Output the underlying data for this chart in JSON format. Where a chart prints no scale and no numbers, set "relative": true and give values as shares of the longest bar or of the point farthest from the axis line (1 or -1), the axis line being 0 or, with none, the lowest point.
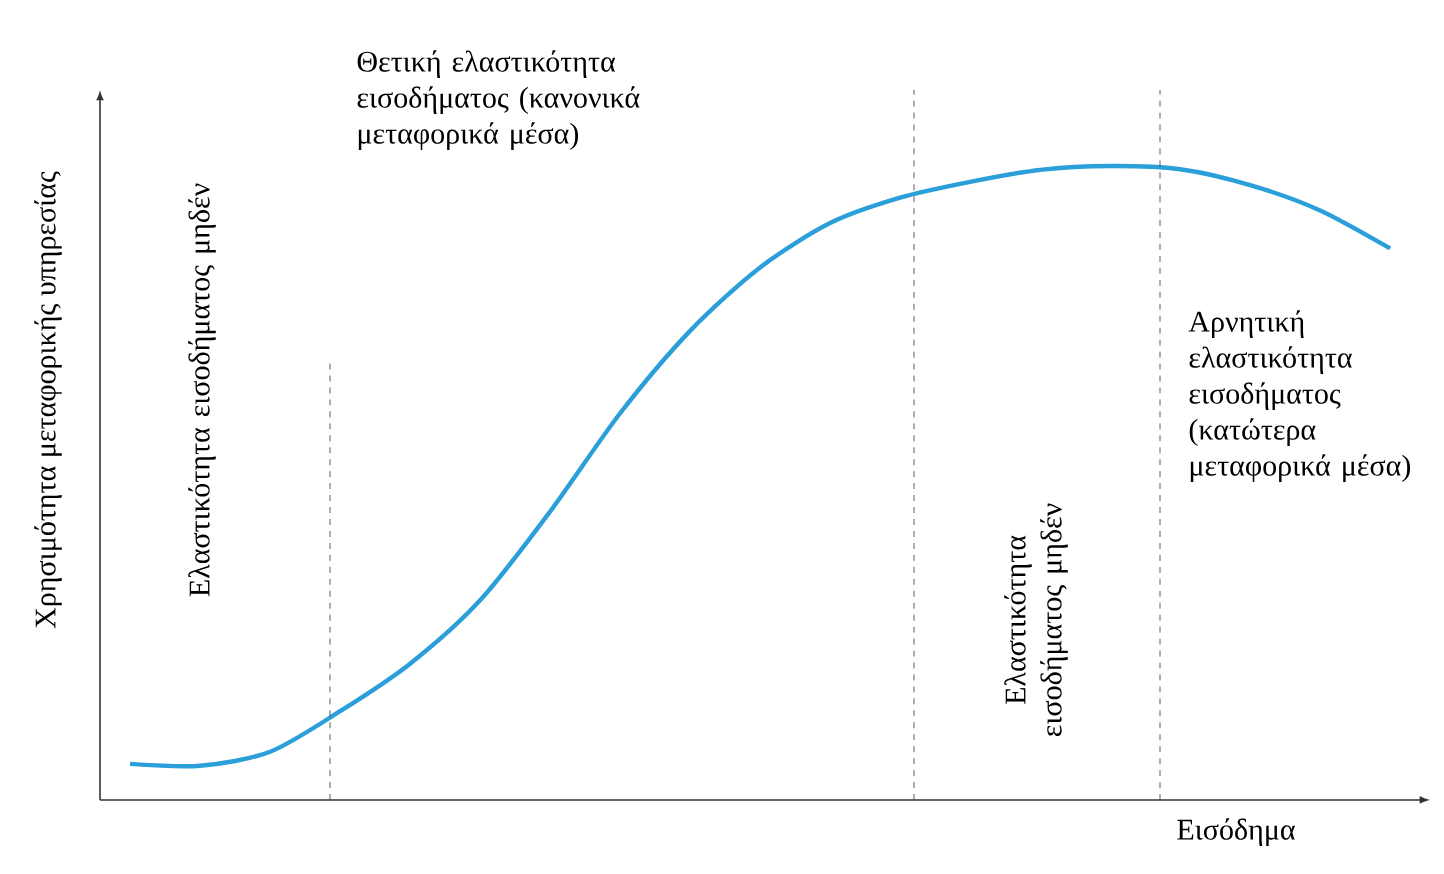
{
  "chart_data": {
    "type": "line",
    "relative": true,
    "categories": [
      null,
      null,
      null,
      null,
      null,
      null,
      null,
      null,
      null,
      null,
      null,
      null,
      null,
      null,
      null,
      null,
      null,
      null,
      null
    ],
    "series": [
      {
        "color": "#2b9fd9",
        "values": [
          0.057,
          0.054,
          0.076,
          0.14,
          0.215,
          0.315,
          0.455,
          0.61,
          0.74,
          0.84,
          0.91,
          0.95,
          0.975,
          0.994,
          1.0,
          0.995,
          0.97,
          0.93,
          0.87
        ]
      }
    ],
    "ylabel": "Χρησιμότητα μεταφορικής υπηρεσίας",
    "xlabel": "Εισόδημα",
    "annotations": [
      "Θετική ελαστικότητα εισοδήματος (κανονικά μεταφορικά μέσα)",
      "Αρνητική ελαστικότητα εισοδήματος (κατώτερα μεταφορικά μέσα)",
      "Ελαστικότητα εισοδήματος μηδέν",
      "Ελαστικότητα εισοδήματος μηδέν"
    ],
    "marker": "none",
    "line_style": "solid"
  }
}
